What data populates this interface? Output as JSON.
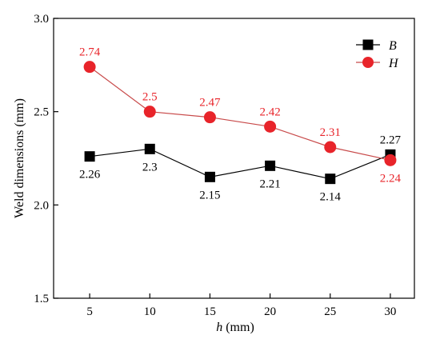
{
  "chart_data": {
    "type": "line",
    "title": "",
    "xlabel_var": "h",
    "xlabel_unit": " (mm)",
    "ylabel": "Weld dimensions (mm)",
    "x": [
      5,
      10,
      15,
      20,
      25,
      30
    ],
    "x_ticks": [
      "5",
      "10",
      "15",
      "20",
      "25",
      "30"
    ],
    "y_ticks": [
      "1.5",
      "2.0",
      "2.5",
      "3.0"
    ],
    "y_tick_values": [
      1.5,
      2.0,
      2.5,
      3.0
    ],
    "xlim": [
      2,
      32
    ],
    "ylim": [
      1.5,
      3.0
    ],
    "grid": false,
    "legend_position": "top-right",
    "series": [
      {
        "name": "B",
        "marker": "square",
        "color": "#000000",
        "values": [
          2.26,
          2.3,
          2.15,
          2.21,
          2.14,
          2.27
        ],
        "labels": [
          "2.26",
          "2.3",
          "2.15",
          "2.21",
          "2.14",
          "2.27"
        ],
        "label_positions": [
          "below",
          "below",
          "below",
          "below",
          "below",
          "above"
        ]
      },
      {
        "name": "H",
        "marker": "circle",
        "color": "#e8242a",
        "line_color": "#c84a4a",
        "values": [
          2.74,
          2.5,
          2.47,
          2.42,
          2.31,
          2.24
        ],
        "labels": [
          "2.74",
          "2.5",
          "2.47",
          "2.42",
          "2.31",
          "2.24"
        ],
        "label_positions": [
          "above",
          "above",
          "above",
          "above",
          "above",
          "below"
        ]
      }
    ]
  }
}
